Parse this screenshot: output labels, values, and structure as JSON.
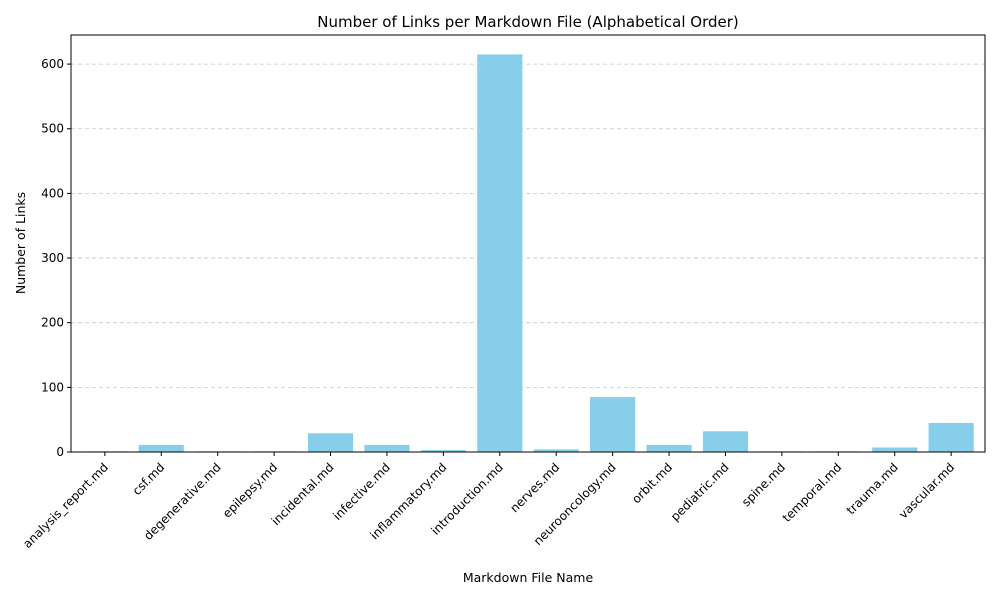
{
  "chart_data": {
    "type": "bar",
    "title": "Number of Links per Markdown File (Alphabetical Order)",
    "xlabel": "Markdown File Name",
    "ylabel": "Number of Links",
    "categories": [
      "analysis_report.md",
      "csf.md",
      "degenerative.md",
      "epilepsy.md",
      "incidental.md",
      "infective.md",
      "inflammatory.md",
      "introduction.md",
      "nerves.md",
      "neurooncology.md",
      "orbit.md",
      "pediatric.md",
      "spine.md",
      "temporal.md",
      "trauma.md",
      "vascular.md"
    ],
    "values": [
      1,
      11,
      1,
      1,
      29,
      11,
      3,
      615,
      4,
      85,
      11,
      32,
      1,
      1,
      7,
      45
    ],
    "ylim": [
      0,
      645
    ],
    "yticks": [
      0,
      100,
      200,
      300,
      400,
      500,
      600
    ],
    "bar_color": "#87CEEB",
    "grid": "y-dashed",
    "legend": "none"
  }
}
